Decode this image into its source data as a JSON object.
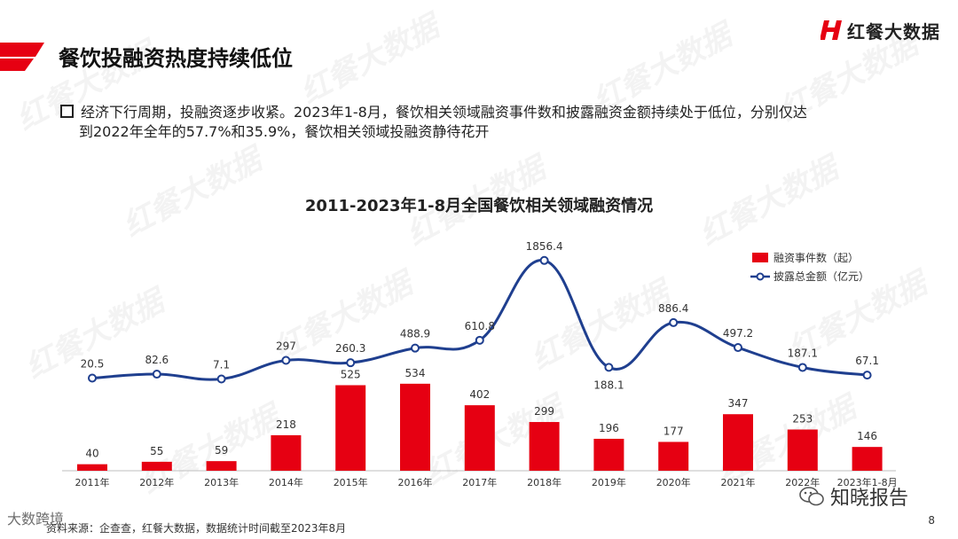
{
  "header": {
    "title": "餐饮投融资热度持续低位",
    "logo_text": "红餐大数据",
    "brand_color": "#e60012"
  },
  "bullet": {
    "line1": "经济下行周期，投融资逐步收紧。2023年1-8月，餐饮相关领域融资事件数和披露融资金额持续处于低位，分别仅达",
    "line2": "到2022年全年的57.7%和35.9%，餐饮相关领域投融资静待花开"
  },
  "watermark": {
    "text": "红餐大数据"
  },
  "chart_data": {
    "type": "bar+line",
    "title": "2011-2023年1-8月全国餐饮相关领域融资情况",
    "categories": [
      "2011年",
      "2012年",
      "2013年",
      "2014年",
      "2015年",
      "2016年",
      "2017年",
      "2018年",
      "2019年",
      "2020年",
      "2021年",
      "2022年",
      "2023年1-8月"
    ],
    "series": [
      {
        "name": "融资事件数（起）",
        "type": "bar",
        "color": "#e60012",
        "values": [
          40,
          55,
          59,
          218,
          525,
          534,
          402,
          299,
          196,
          177,
          347,
          253,
          146
        ]
      },
      {
        "name": "披露总金额（亿元）",
        "type": "line",
        "color": "#1f3f8f",
        "values": [
          20.5,
          82.6,
          7.1,
          297,
          260.3,
          488.9,
          610.8,
          1856.4,
          188.1,
          886.4,
          497.2,
          187.1,
          67.1
        ],
        "labels": [
          "20.5",
          "82.6",
          "7.1",
          "297",
          "260.3",
          "488.9",
          "610.8",
          "1856.4",
          "188.1",
          "886.4",
          "497.2",
          "187.1",
          "67.1"
        ]
      }
    ],
    "legend_position": "top-right",
    "grid": false
  },
  "footer": {
    "source": "资料来源：企查查，红餐大数据，数据统计时间截至2023年8月",
    "page_number": "8",
    "wechat_label": "知晓报告",
    "corner_mark": "大数跨境"
  }
}
